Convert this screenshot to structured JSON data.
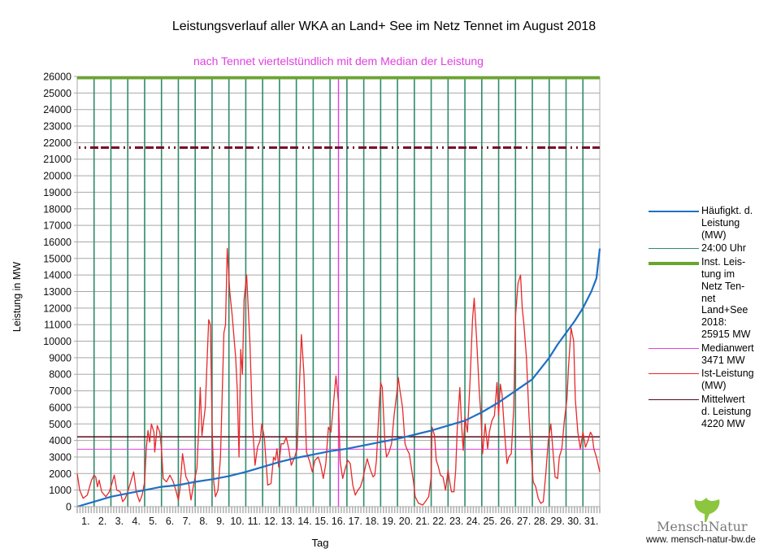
{
  "chart_data": {
    "type": "line",
    "title": "Leistungsverlauf aller WKA an Land+ See im Netz Tennet im August 2018",
    "subtitle": "nach Tennet viertelstündlich mit dem Median der Leistung",
    "xlabel": "Tag",
    "ylabel": "Leistung in MW",
    "ylim": [
      0,
      26000
    ],
    "xlim": [
      0,
      31
    ],
    "y_ticks": [
      0,
      1000,
      2000,
      3000,
      4000,
      5000,
      6000,
      7000,
      8000,
      9000,
      10000,
      11000,
      12000,
      13000,
      14000,
      15000,
      16000,
      17000,
      18000,
      19000,
      20000,
      21000,
      22000,
      23000,
      24000,
      25000,
      26000
    ],
    "x_tick_labels": [
      "1.",
      "2.",
      "3.",
      "4.",
      "5.",
      "6.",
      "7.",
      "8.",
      "9.",
      "10.",
      "11.",
      "12.",
      "13.",
      "14.",
      "15.",
      "16.",
      "17.",
      "18.",
      "19.",
      "20.",
      "21.",
      "22.",
      "23.",
      "24.",
      "25.",
      "26.",
      "27.",
      "28.",
      "29.",
      "30.",
      "31."
    ],
    "grid": true,
    "legend_position": "right",
    "colors": {
      "haeufigkeit": "#1f6fc5",
      "midnight": "#2e8b6a",
      "installed": "#6aa52e",
      "median": "#e040e0",
      "ist": "#e8282a",
      "mean": "#5a0a1a",
      "max_dashed": "#7a0a2a"
    },
    "reference_lines": {
      "installed_mw": 25915,
      "dashed_mw": 21700,
      "median_mw": 3471,
      "mean_mw": 4220,
      "median_day": 15.5
    },
    "series": [
      {
        "name": "Häufigkt. d. Leistung (MW)",
        "x": [
          0,
          1,
          2,
          3,
          4,
          5,
          6,
          7,
          8,
          9,
          10,
          11,
          12,
          13,
          14,
          15,
          16,
          17,
          18,
          19,
          20,
          21,
          22,
          23,
          24,
          25,
          26,
          27,
          28,
          28.5,
          29,
          29.5,
          30,
          30.5,
          30.8,
          31
        ],
        "values": [
          0,
          300,
          600,
          800,
          1000,
          1200,
          1300,
          1500,
          1650,
          1850,
          2100,
          2400,
          2700,
          2950,
          3150,
          3350,
          3500,
          3700,
          3900,
          4100,
          4350,
          4600,
          4900,
          5200,
          5700,
          6300,
          7000,
          7700,
          9000,
          9800,
          10500,
          11200,
          12000,
          13000,
          13800,
          15600
        ]
      },
      {
        "name": "Ist-Leistung (MW)",
        "x": [
          0,
          0.15,
          0.35,
          0.6,
          0.85,
          1.0,
          1.1,
          1.2,
          1.3,
          1.45,
          1.7,
          1.9,
          2.0,
          2.2,
          2.35,
          2.55,
          2.7,
          2.85,
          3.0,
          3.2,
          3.35,
          3.5,
          3.7,
          3.85,
          4.0,
          4.1,
          4.2,
          4.3,
          4.4,
          4.55,
          4.6,
          4.75,
          4.9,
          5.0,
          5.1,
          5.3,
          5.5,
          5.7,
          5.85,
          6.0,
          6.1,
          6.25,
          6.45,
          6.6,
          6.75,
          6.9,
          7.0,
          7.1,
          7.2,
          7.3,
          7.4,
          7.6,
          7.8,
          7.9,
          8.0,
          8.1,
          8.2,
          8.35,
          8.5,
          8.7,
          8.8,
          8.9,
          9.05,
          9.2,
          9.4,
          9.5,
          9.6,
          9.7,
          9.8,
          9.9,
          10.05,
          10.25,
          10.4,
          10.55,
          10.7,
          10.85,
          10.95,
          11.1,
          11.3,
          11.5,
          11.65,
          11.75,
          11.85,
          11.95,
          12.1,
          12.25,
          12.4,
          12.55,
          12.7,
          12.9,
          13.05,
          13.15,
          13.3,
          13.45,
          13.6,
          13.8,
          13.95,
          14.1,
          14.3,
          14.45,
          14.6,
          14.75,
          14.9,
          15.05,
          15.15,
          15.35,
          15.5,
          15.6,
          15.75,
          15.9,
          16.05,
          16.2,
          16.35,
          16.5,
          16.65,
          16.8,
          16.95,
          17.05,
          17.2,
          17.4,
          17.55,
          17.65,
          17.75,
          17.9,
          18.0,
          18.1,
          18.25,
          18.35,
          18.5,
          18.65,
          18.8,
          18.95,
          19.05,
          19.15,
          19.3,
          19.45,
          19.55,
          19.7,
          19.8,
          19.95,
          20.05,
          20.25,
          20.5,
          20.65,
          20.85,
          21.0,
          21.05,
          21.2,
          21.3,
          21.4,
          21.55,
          21.7,
          21.85,
          22.0,
          22.1,
          22.2,
          22.35,
          22.45,
          22.55,
          22.7,
          22.8,
          22.9,
          23.0,
          23.15,
          23.3,
          23.45,
          23.55,
          23.7,
          23.85,
          23.95,
          24.05,
          24.2,
          24.35,
          24.45,
          24.6,
          24.75,
          24.9,
          25.0,
          25.1,
          25.2,
          25.35,
          25.5,
          25.6,
          25.75,
          25.9,
          26.0,
          26.15,
          26.3,
          26.4,
          26.5,
          26.65,
          26.8,
          26.95,
          27.05,
          27.2,
          27.35,
          27.5,
          27.65,
          27.8,
          27.95,
          28.1,
          28.25,
          28.35,
          28.5,
          28.6,
          28.75,
          28.9,
          29.05,
          29.15,
          29.3,
          29.45,
          29.55,
          29.7,
          29.85,
          30.0,
          30.15,
          30.3,
          30.45,
          30.55,
          30.65,
          30.8,
          31.0
        ],
        "values": [
          2000,
          1000,
          500,
          700,
          1600,
          1900,
          1800,
          1200,
          1600,
          900,
          600,
          900,
          1200,
          1900,
          1000,
          900,
          300,
          500,
          900,
          1600,
          2100,
          900,
          300,
          700,
          1500,
          3500,
          4600,
          3900,
          5000,
          4500,
          3300,
          4900,
          4500,
          3500,
          1700,
          1500,
          1900,
          1500,
          1000,
          400,
          1100,
          3200,
          1800,
          1500,
          400,
          1300,
          1800,
          2300,
          4500,
          7200,
          4300,
          6000,
          11300,
          11000,
          5000,
          1500,
          600,
          1000,
          3000,
          10500,
          11000,
          15600,
          13000,
          11500,
          9000,
          7000,
          3000,
          9500,
          8000,
          12500,
          14000,
          9800,
          5000,
          2500,
          3600,
          4000,
          5000,
          4200,
          1300,
          1400,
          3000,
          2800,
          3500,
          2400,
          3800,
          3800,
          4200,
          3500,
          2500,
          3000,
          3500,
          6500,
          10400,
          8000,
          3300,
          2700,
          2100,
          2800,
          3000,
          2500,
          1700,
          2600,
          4800,
          4500,
          5600,
          7900,
          6300,
          2700,
          1700,
          2300,
          2800,
          2600,
          1300,
          700,
          1000,
          1200,
          1700,
          2200,
          2900,
          2200,
          1800,
          1900,
          2800,
          5800,
          7500,
          7200,
          4000,
          3000,
          3300,
          3800,
          5500,
          6800,
          7800,
          7000,
          6000,
          3800,
          3500,
          3200,
          2500,
          1500,
          600,
          200,
          100,
          300,
          600,
          1800,
          4800,
          4300,
          2800,
          2500,
          1900,
          1800,
          1000,
          2200,
          1500,
          900,
          900,
          2200,
          4800,
          7200,
          5000,
          3400,
          5400,
          4500,
          7500,
          11300,
          12600,
          10000,
          7000,
          5500,
          3200,
          5000,
          3500,
          4500,
          5200,
          5500,
          7500,
          5500,
          7400,
          6800,
          4500,
          2600,
          3000,
          3200,
          6000,
          11500,
          13500,
          14000,
          12000,
          11000,
          9000,
          5500,
          3000,
          1500,
          1200,
          500,
          200,
          300,
          2000,
          4000,
          5000,
          3000,
          1800,
          1700,
          3000,
          3500,
          5200,
          6500,
          8500,
          10800,
          10000,
          6500,
          4500,
          3500,
          4500,
          3600,
          4000,
          4500,
          4300,
          3500,
          3000,
          2100
        ]
      }
    ],
    "legend": [
      {
        "key": "haeufigkeit",
        "label": "Häufigkt. d.\nLeistung\n(MW)"
      },
      {
        "key": "midnight",
        "label": "24:00 Uhr"
      },
      {
        "key": "installed",
        "label": "Inst. Leis-\ntung im\nNetz Ten-\nnet\nLand+See\n2018:\n25915 MW"
      },
      {
        "key": "median",
        "label": "Medianwert\n3471 MW"
      },
      {
        "key": "ist",
        "label": "Ist-Leistung\n(MW)"
      },
      {
        "key": "mean",
        "label": "Mittelwert\nd. Leistung\n4220 MW"
      }
    ]
  },
  "logo": {
    "name": "MenschNatur",
    "url": "www. mensch-natur-bw.de"
  }
}
